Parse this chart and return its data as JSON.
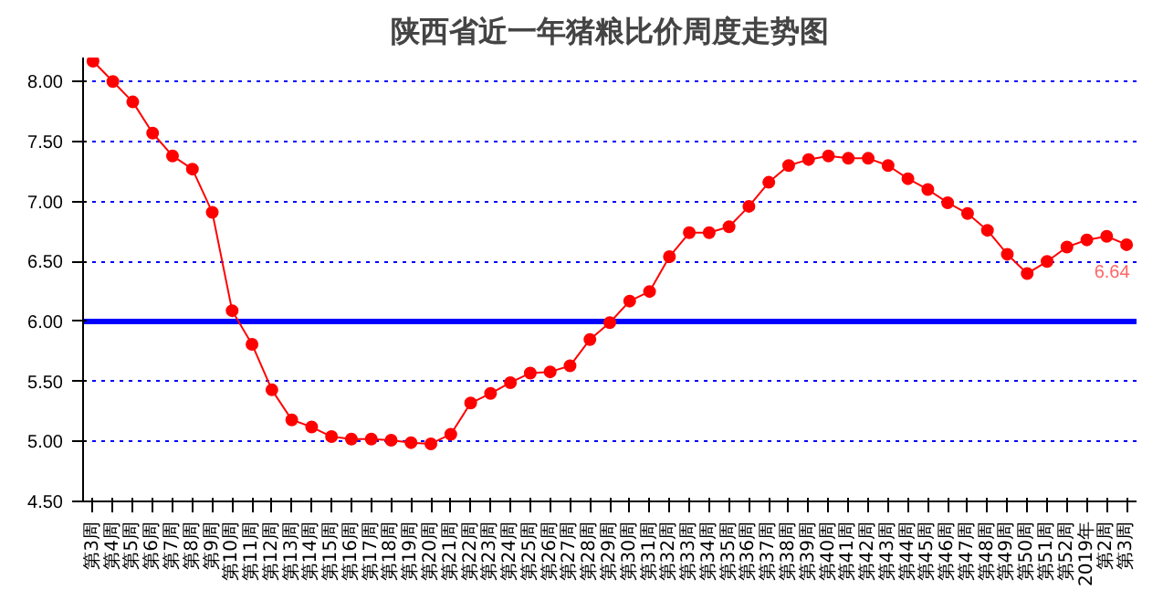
{
  "chart_data": {
    "type": "line",
    "title": "陕西省近一年猪粮比价周度走势图",
    "categories": [
      "第3周",
      "第4周",
      "第5周",
      "第6周",
      "第7周",
      "第8周",
      "第9周",
      "第10周",
      "第11周",
      "第12周",
      "第13周",
      "第14周",
      "第15周",
      "第16周",
      "第17周",
      "第18周",
      "第19周",
      "第20周",
      "第21周",
      "第22周",
      "第23周",
      "第24周",
      "第25周",
      "第26周",
      "第27周",
      "第28周",
      "第29周",
      "第30周",
      "第31周",
      "第32周",
      "第33周",
      "第34周",
      "第35周",
      "第36周",
      "第37周",
      "第38周",
      "第39周",
      "第40周",
      "第41周",
      "第42周",
      "第43周",
      "第44周",
      "第45周",
      "第46周",
      "第47周",
      "第48周",
      "第49周",
      "第50周",
      "第51周",
      "第52周",
      "2019年",
      "第2周",
      "第3周"
    ],
    "series": [
      {
        "color": "#ff0000",
        "values": [
          8.17,
          8.0,
          7.83,
          7.57,
          7.38,
          7.27,
          6.91,
          6.09,
          5.81,
          5.43,
          5.18,
          5.12,
          5.04,
          5.02,
          5.02,
          5.01,
          4.99,
          4.98,
          5.06,
          5.32,
          5.4,
          5.49,
          5.57,
          5.58,
          5.63,
          5.85,
          5.99,
          6.17,
          6.25,
          6.54,
          6.74,
          6.74,
          6.79,
          6.96,
          7.16,
          7.3,
          7.35,
          7.38,
          7.36,
          7.36,
          7.3,
          7.19,
          7.1,
          6.99,
          6.9,
          6.76,
          6.56,
          6.4,
          6.5,
          6.62,
          6.68,
          6.71,
          6.64
        ],
        "value_labels": [
          null,
          null,
          null,
          null,
          null,
          null,
          null,
          null,
          null,
          null,
          null,
          null,
          null,
          null,
          null,
          null,
          null,
          null,
          null,
          null,
          null,
          null,
          null,
          null,
          null,
          null,
          null,
          null,
          null,
          null,
          null,
          null,
          null,
          null,
          null,
          null,
          null,
          null,
          null,
          null,
          null,
          null,
          null,
          null,
          null,
          null,
          null,
          null,
          null,
          null,
          null,
          null,
          "6.64"
        ]
      }
    ],
    "ylim": [
      4.5,
      8.2
    ],
    "yticks": [
      {
        "value": 4.5,
        "label": "4.50"
      },
      {
        "value": 5,
        "label": "5.00"
      },
      {
        "value": 5.5,
        "label": "5.50"
      },
      {
        "value": 6,
        "label": "6.00"
      },
      {
        "value": 6.5,
        "label": "6.50"
      },
      {
        "value": 7,
        "label": "7.00"
      },
      {
        "value": 7.5,
        "label": "7.50"
      },
      {
        "value": 8,
        "label": "8.00"
      }
    ],
    "ref_lines": [
      {
        "axis": "y",
        "value": 6,
        "color": "#0000ff",
        "line_style": "solid"
      }
    ],
    "grid": "y",
    "marker": "circle",
    "line_style": "solid"
  }
}
